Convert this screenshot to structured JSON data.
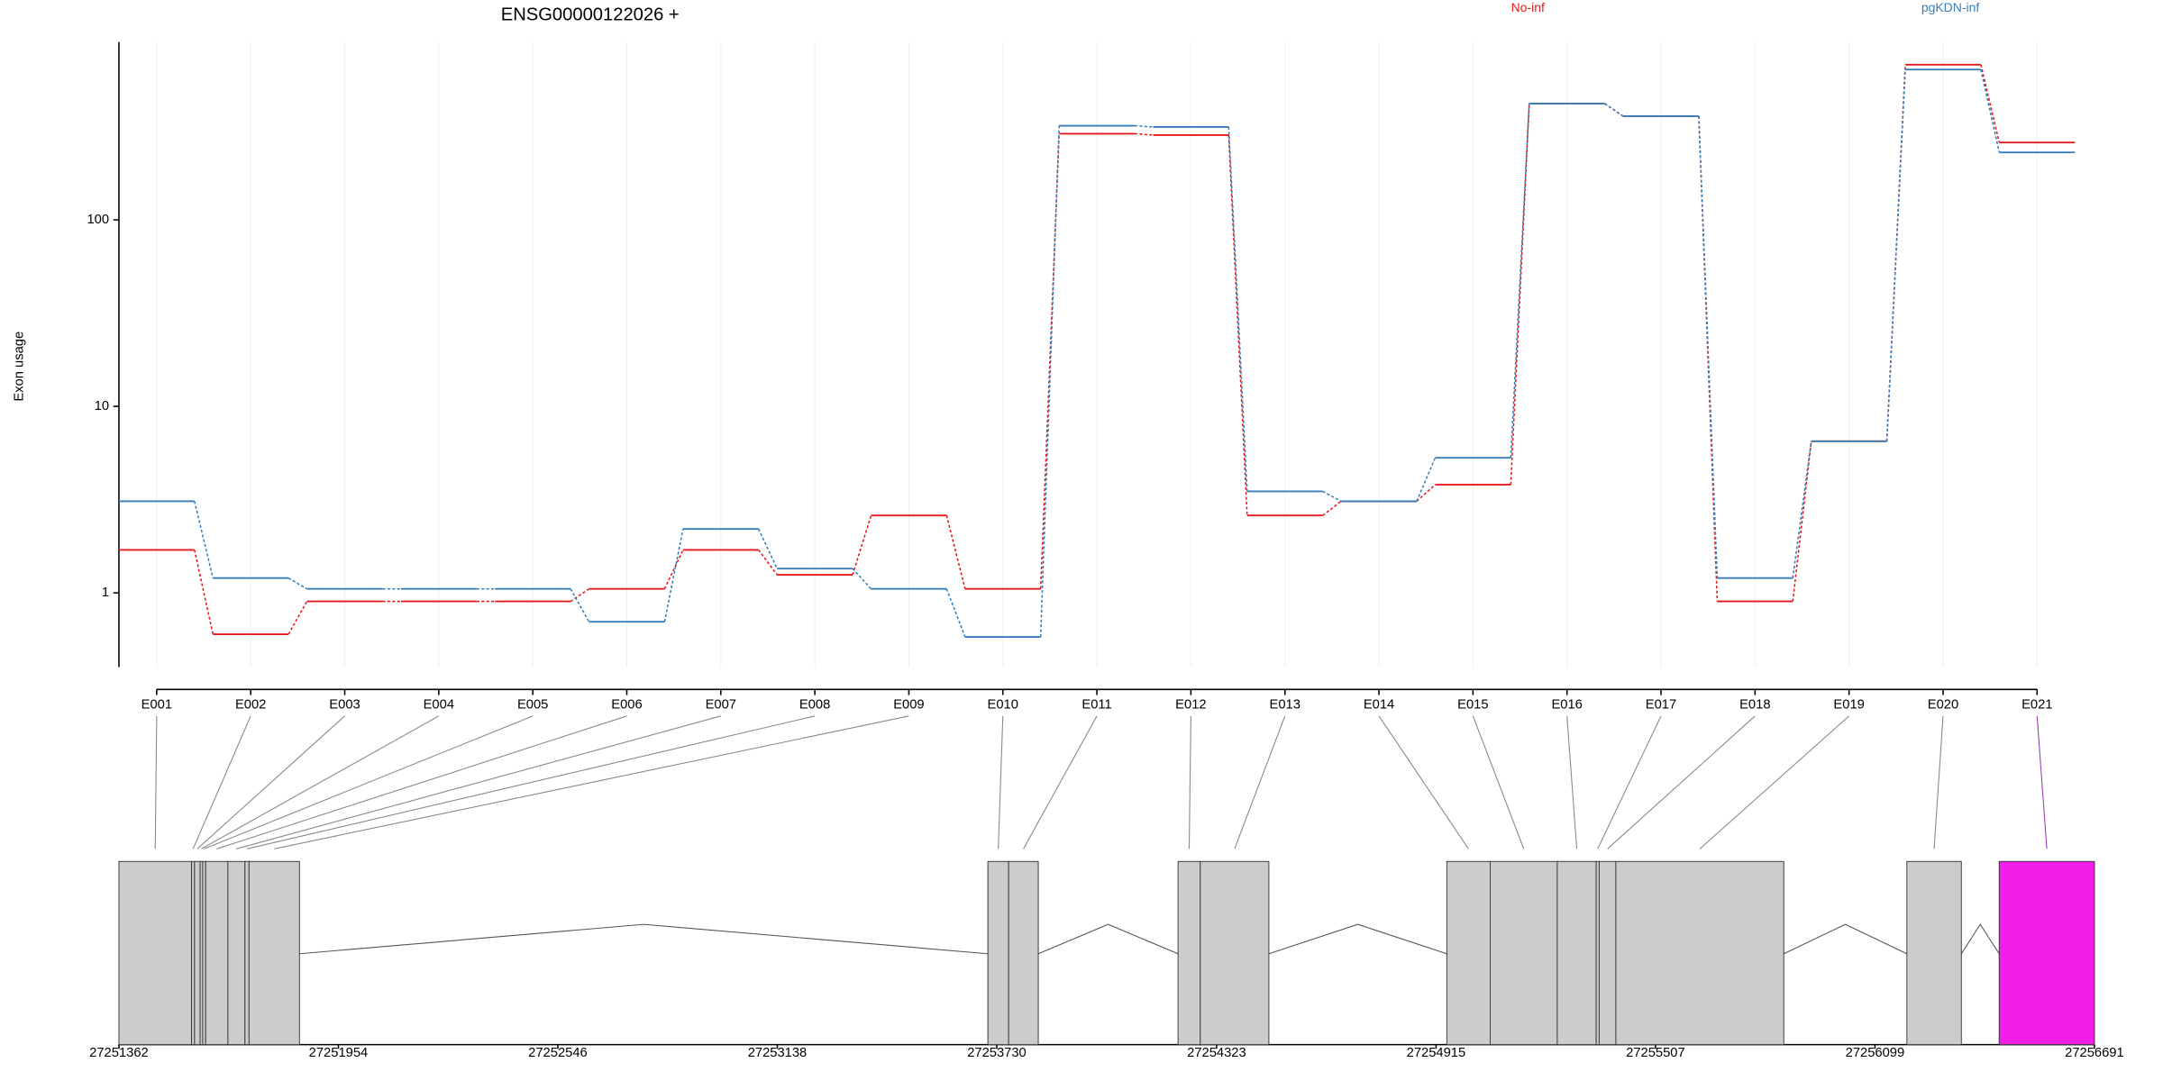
{
  "chart_data": [
    {
      "type": "line",
      "title": "ENSG00000122026 +",
      "ylabel": "Exon usage",
      "ylog": true,
      "grid": true,
      "categories": [
        "E001",
        "E002",
        "E003",
        "E004",
        "E005",
        "E006",
        "E007",
        "E008",
        "E009",
        "E010",
        "E011",
        "E012",
        "E013",
        "E014",
        "E015",
        "E016",
        "E017",
        "E018",
        "E019",
        "E020",
        "E021"
      ],
      "series": [
        {
          "name": "No-inf",
          "color": "#e41a1c",
          "values": [
            1.7,
            0.6,
            0.9,
            0.9,
            0.9,
            1.05,
            1.7,
            1.25,
            2.6,
            1.05,
            290,
            285,
            2.6,
            3.1,
            3.8,
            420,
            360,
            0.9,
            6.5,
            680,
            260
          ]
        },
        {
          "name": "pgKDN-inf",
          "color": "#377eb8",
          "values": [
            3.1,
            1.2,
            1.05,
            1.05,
            1.05,
            0.7,
            2.2,
            1.35,
            1.05,
            0.58,
            320,
            315,
            3.5,
            3.1,
            5.3,
            420,
            360,
            1.2,
            6.5,
            640,
            230
          ]
        }
      ],
      "ylim": [
        0.4,
        900
      ],
      "yticks": [
        1,
        10,
        100
      ]
    },
    {
      "type": "gene-model",
      "xlim": [
        27251362,
        27256691
      ],
      "xticks": [
        27251362,
        27251954,
        27252546,
        27253138,
        27253730,
        27254323,
        27254915,
        27255507,
        27256099,
        27256691
      ],
      "exons": [
        {
          "start": 27251362,
          "end": 27251558,
          "color": "#cccccc"
        },
        {
          "start": 27251558,
          "end": 27251566,
          "color": "#cccccc"
        },
        {
          "start": 27251566,
          "end": 27251581,
          "color": "#cccccc"
        },
        {
          "start": 27251581,
          "end": 27251588,
          "color": "#cccccc"
        },
        {
          "start": 27251588,
          "end": 27251596,
          "color": "#cccccc"
        },
        {
          "start": 27251596,
          "end": 27251656,
          "color": "#cccccc"
        },
        {
          "start": 27251656,
          "end": 27251702,
          "color": "#cccccc"
        },
        {
          "start": 27251702,
          "end": 27251713,
          "color": "#cccccc"
        },
        {
          "start": 27251713,
          "end": 27251849,
          "color": "#cccccc"
        },
        {
          "start": 27253706,
          "end": 27253762,
          "color": "#cccccc"
        },
        {
          "start": 27253762,
          "end": 27253842,
          "color": "#cccccc"
        },
        {
          "start": 27254219,
          "end": 27254279,
          "color": "#cccccc"
        },
        {
          "start": 27254279,
          "end": 27254464,
          "color": "#cccccc"
        },
        {
          "start": 27254944,
          "end": 27255061,
          "color": "#cccccc"
        },
        {
          "start": 27255061,
          "end": 27255242,
          "color": "#cccccc"
        },
        {
          "start": 27255242,
          "end": 27255347,
          "color": "#cccccc"
        },
        {
          "start": 27255347,
          "end": 27255355,
          "color": "#cccccc"
        },
        {
          "start": 27255355,
          "end": 27255400,
          "color": "#cccccc"
        },
        {
          "start": 27255400,
          "end": 27255853,
          "color": "#cccccc"
        },
        {
          "start": 27256185,
          "end": 27256332,
          "color": "#cccccc"
        },
        {
          "start": 27256434,
          "end": 27256691,
          "color": "#f21ee8"
        }
      ]
    }
  ]
}
